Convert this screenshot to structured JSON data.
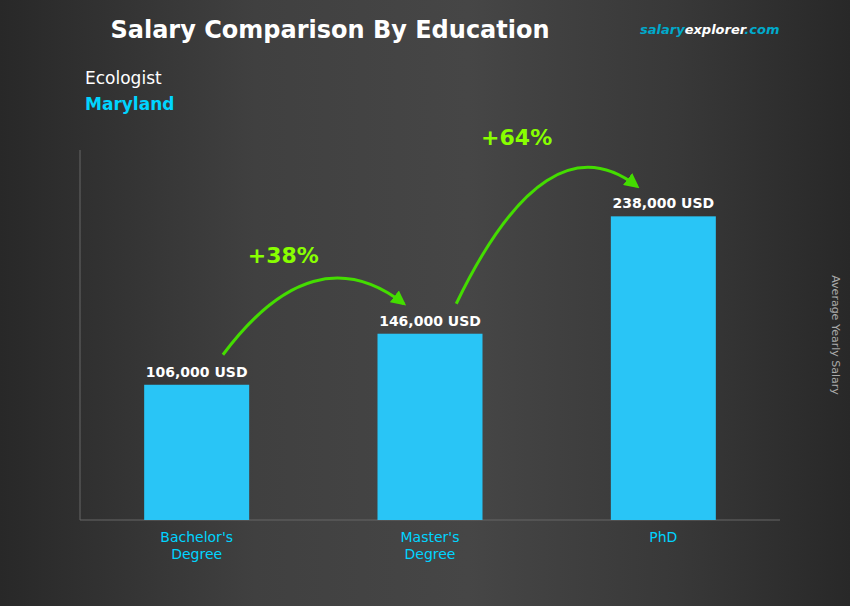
{
  "chart_data": {
    "type": "bar",
    "title": "Salary Comparison By Education",
    "subtitle": [
      "Ecologist",
      "Maryland"
    ],
    "ylabel": "Average Yearly Salary",
    "categories": [
      "Bachelor's\nDegree",
      "Master's\nDegree",
      "PhD"
    ],
    "values": [
      106000,
      146000,
      238000
    ],
    "value_labels": [
      "106,000 USD",
      "146,000 USD",
      "238,000 USD"
    ],
    "data_labels": true,
    "color": "#29c5f6",
    "ylim": [
      0,
      290000
    ],
    "tick_labels": "x",
    "grid": false,
    "annotations": [
      {
        "text": "+38%",
        "color": "#88ff00"
      },
      {
        "text": "+64%",
        "color": "#88ff00"
      }
    ],
    "source": [
      {
        "text": "salary",
        "color": "#00aacc"
      },
      {
        "text": "explorer",
        "color": "#ffffff"
      },
      {
        "text": ".com",
        "color": "#00aacc"
      }
    ]
  }
}
